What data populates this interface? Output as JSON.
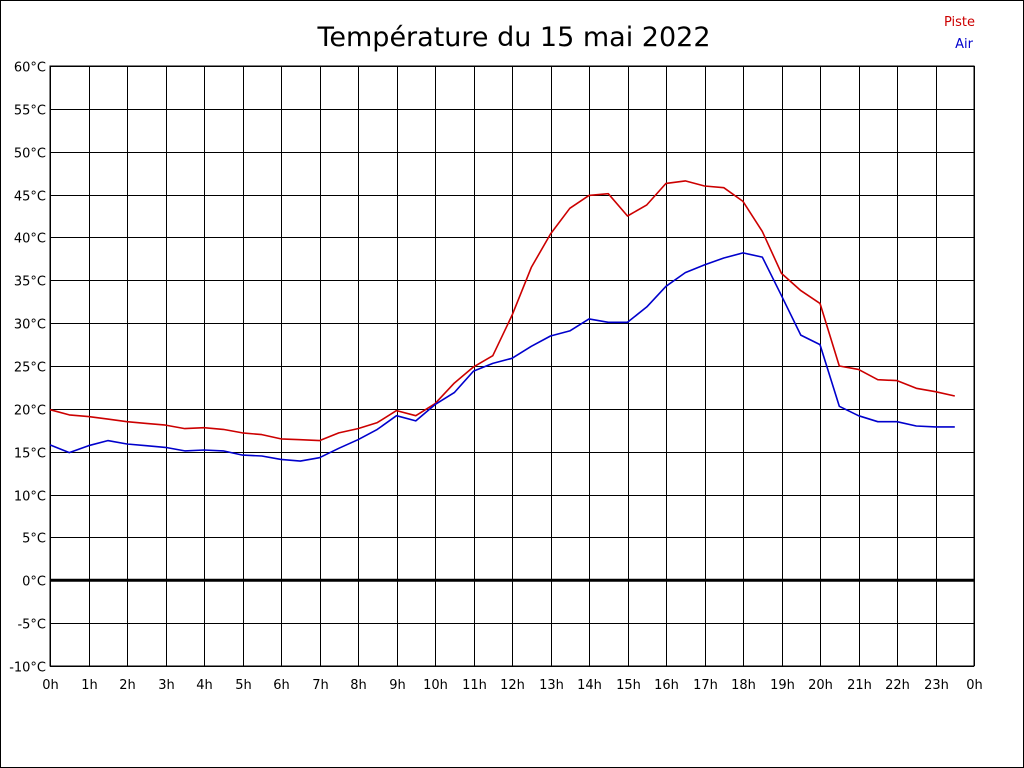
{
  "chart_data": {
    "type": "line",
    "title": "Température du 15 mai 2022",
    "xlabel": "",
    "ylabel": "",
    "x_ticks": [
      "0h",
      "1h",
      "2h",
      "3h",
      "4h",
      "5h",
      "6h",
      "7h",
      "8h",
      "9h",
      "10h",
      "11h",
      "12h",
      "13h",
      "14h",
      "15h",
      "16h",
      "17h",
      "18h",
      "19h",
      "20h",
      "21h",
      "22h",
      "23h",
      "0h"
    ],
    "y_ticks": [
      "-10°C",
      "-5°C",
      "0°C",
      "5°C",
      "10°C",
      "15°C",
      "20°C",
      "25°C",
      "30°C",
      "35°C",
      "40°C",
      "45°C",
      "50°C",
      "55°C",
      "60°C"
    ],
    "xlim": [
      0,
      24
    ],
    "ylim": [
      -10,
      60
    ],
    "ytick_step": 5,
    "grid": true,
    "zero_line": true,
    "legend_position": "top-right",
    "series": [
      {
        "name": "Piste",
        "color": "#cc0000",
        "x": [
          0,
          0.5,
          1,
          1.5,
          2,
          2.5,
          3,
          3.5,
          4,
          4.5,
          5,
          5.5,
          6,
          6.5,
          7,
          7.5,
          8,
          8.5,
          9,
          9.5,
          10,
          10.5,
          11,
          11.5,
          12,
          12.5,
          13,
          13.5,
          14,
          14.5,
          15,
          15.5,
          16,
          16.5,
          17,
          17.5,
          18,
          18.5,
          19,
          19.5,
          20,
          20.5,
          21,
          21.5,
          22,
          22.5,
          23,
          23.5
        ],
        "values": [
          19.9,
          19.3,
          19.1,
          18.8,
          18.5,
          18.3,
          18.1,
          17.7,
          17.8,
          17.6,
          17.2,
          17.0,
          16.5,
          16.4,
          16.3,
          17.2,
          17.7,
          18.4,
          19.8,
          19.2,
          20.6,
          23.0,
          24.9,
          26.2,
          30.9,
          36.5,
          40.4,
          43.4,
          44.9,
          45.1,
          42.5,
          43.8,
          46.3,
          46.6,
          46.0,
          45.8,
          44.2,
          40.7,
          35.8,
          33.8,
          32.3,
          25.0,
          24.6,
          23.4,
          23.3,
          22.4,
          22.0,
          21.5
        ]
      },
      {
        "name": "Air",
        "color": "#0000cc",
        "x": [
          0,
          0.5,
          1,
          1.5,
          2,
          2.5,
          3,
          3.5,
          4,
          4.5,
          5,
          5.5,
          6,
          6.5,
          7,
          7.5,
          8,
          8.5,
          9,
          9.5,
          10,
          10.5,
          11,
          11.5,
          12,
          12.5,
          13,
          13.5,
          14,
          14.5,
          15,
          15.5,
          16,
          16.5,
          17,
          17.5,
          18,
          18.5,
          19,
          19.5,
          20,
          20.5,
          21,
          21.5,
          22,
          22.5,
          23,
          23.5
        ],
        "values": [
          15.8,
          14.9,
          15.7,
          16.3,
          15.9,
          15.7,
          15.5,
          15.1,
          15.2,
          15.1,
          14.6,
          14.5,
          14.1,
          13.9,
          14.3,
          15.4,
          16.4,
          17.6,
          19.2,
          18.6,
          20.5,
          21.9,
          24.4,
          25.3,
          25.9,
          27.3,
          28.5,
          29.1,
          30.5,
          30.1,
          30.1,
          31.9,
          34.3,
          35.9,
          36.8,
          37.6,
          38.2,
          37.7,
          33.2,
          28.6,
          27.5,
          20.3,
          19.2,
          18.5,
          18.5,
          18.0,
          17.9,
          17.9
        ]
      }
    ]
  }
}
